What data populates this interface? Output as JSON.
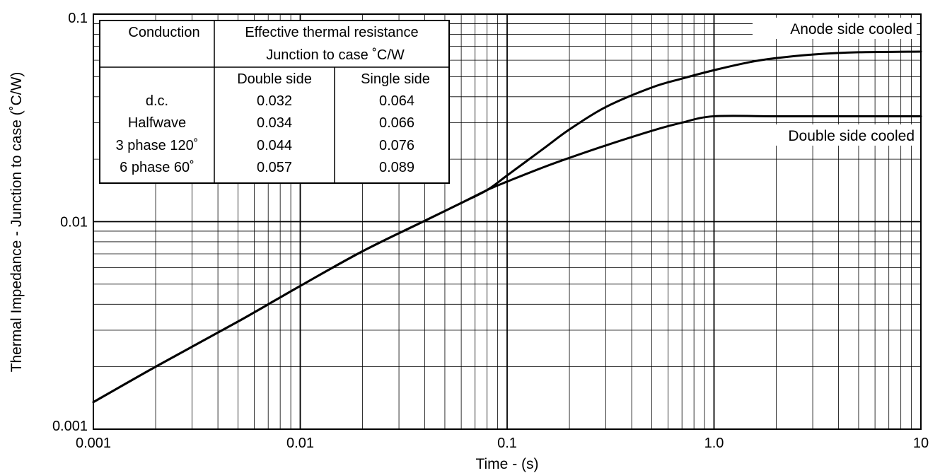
{
  "chart_data": {
    "type": "line",
    "title": "",
    "xlabel": "Time - (s)",
    "ylabel": "Thermal Impedance - Junction to case (˚C/W)",
    "xscale": "log",
    "yscale": "log",
    "xlim": [
      0.001,
      10
    ],
    "ylim": [
      0.001,
      0.1
    ],
    "grid": true,
    "x_tick_labels": [
      "0.001",
      "0.01",
      "0.1",
      "1.0",
      "10"
    ],
    "x_tick_values": [
      0.001,
      0.01,
      0.1,
      1.0,
      10
    ],
    "y_tick_labels": [
      "0.001",
      "0.01",
      "0.1"
    ],
    "y_tick_values": [
      0.001,
      0.01,
      0.1
    ],
    "series": [
      {
        "name": "Anode side cooled",
        "x": [
          0.001,
          0.002,
          0.005,
          0.01,
          0.02,
          0.04,
          0.06,
          0.08,
          0.1,
          0.15,
          0.2,
          0.3,
          0.5,
          0.7,
          1.0,
          1.5,
          2.0,
          3.0,
          5.0,
          10
        ],
        "y": [
          0.00135,
          0.002,
          0.0033,
          0.0049,
          0.0072,
          0.0101,
          0.0123,
          0.0142,
          0.0167,
          0.0225,
          0.0278,
          0.0357,
          0.0443,
          0.0489,
          0.0537,
          0.0588,
          0.0614,
          0.0639,
          0.0655,
          0.066
        ]
      },
      {
        "name": "Double side cooled",
        "x": [
          0.001,
          0.002,
          0.005,
          0.01,
          0.02,
          0.04,
          0.06,
          0.08,
          0.1,
          0.15,
          0.2,
          0.3,
          0.5,
          0.7,
          1.0,
          2.0,
          5.0,
          10
        ],
        "y": [
          0.00135,
          0.002,
          0.0033,
          0.0049,
          0.0072,
          0.0101,
          0.0123,
          0.0142,
          0.0156,
          0.0183,
          0.0203,
          0.0233,
          0.0274,
          0.03,
          0.0322,
          0.0322,
          0.0322,
          0.0322
        ]
      }
    ],
    "annotations": [
      {
        "text": "Anode side cooled",
        "position": "top-right, above upper curve"
      },
      {
        "text": "Double side cooled",
        "position": "right, below lower curve"
      }
    ],
    "table": {
      "position": "top-left",
      "header_col1": "Conduction",
      "header_line1": "Effective thermal resistance",
      "header_line2": "Junction to case ˚C/W",
      "subheaders": [
        "Double side",
        "Single side"
      ],
      "rows": [
        {
          "conduction": "d.c.",
          "double": "0.032",
          "single": "0.064"
        },
        {
          "conduction": "Halfwave",
          "double": "0.034",
          "single": "0.066"
        },
        {
          "conduction": "3 phase 120˚",
          "double": "0.044",
          "single": "0.076"
        },
        {
          "conduction": "6 phase 60˚",
          "double": "0.057",
          "single": "0.089"
        }
      ]
    }
  }
}
